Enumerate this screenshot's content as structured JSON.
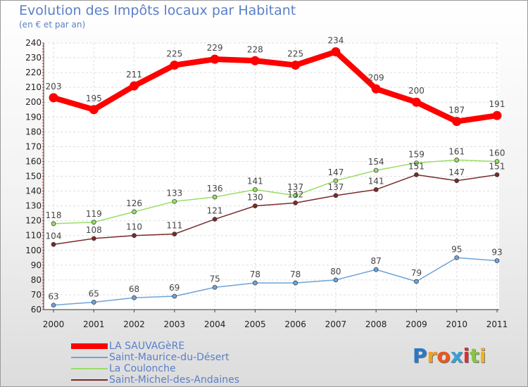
{
  "title": "Evolution des Impôts locaux par Habitant",
  "subtitle": "(en € et par an)",
  "logo": {
    "text": "Proxiti",
    "colors": [
      "#2a78c6",
      "#f0a020",
      "#e8581c",
      "#3aa0d8",
      "#d83030",
      "#8bc34a",
      "#f3b21c"
    ]
  },
  "chart_data": {
    "type": "line",
    "title": "Evolution des Impôts locaux par Habitant",
    "subtitle": "(en € et par an)",
    "xlabel": "",
    "ylabel": "",
    "x": [
      "2000",
      "2001",
      "2002",
      "2003",
      "2004",
      "2005",
      "2006",
      "2007",
      "2008",
      "2009",
      "2010",
      "2011"
    ],
    "ylim": [
      60,
      240
    ],
    "yticks": [
      60,
      70,
      80,
      90,
      100,
      110,
      120,
      130,
      140,
      150,
      160,
      170,
      180,
      190,
      200,
      210,
      220,
      230,
      240
    ],
    "grid": true,
    "legend_position": "bottom-left",
    "series": [
      {
        "name": "LA SAUVAGèRE",
        "color": "#ff0000",
        "values": [
          203,
          195,
          211,
          225,
          229,
          228,
          225,
          234,
          209,
          200,
          187,
          191
        ]
      },
      {
        "name": "Saint-Maurice-du-Désert",
        "color": "#6fa3d8",
        "values": [
          63,
          65,
          68,
          69,
          75,
          78,
          78,
          80,
          87,
          79,
          95,
          93
        ]
      },
      {
        "name": "La Coulonche",
        "color": "#99dd66",
        "values": [
          118,
          119,
          126,
          133,
          136,
          141,
          137,
          147,
          154,
          159,
          161,
          160
        ]
      },
      {
        "name": "Saint-Michel-des-Andaines",
        "color": "#7a2a2a",
        "values": [
          104,
          108,
          110,
          111,
          121,
          130,
          132,
          137,
          141,
          151,
          147,
          151
        ]
      }
    ]
  }
}
